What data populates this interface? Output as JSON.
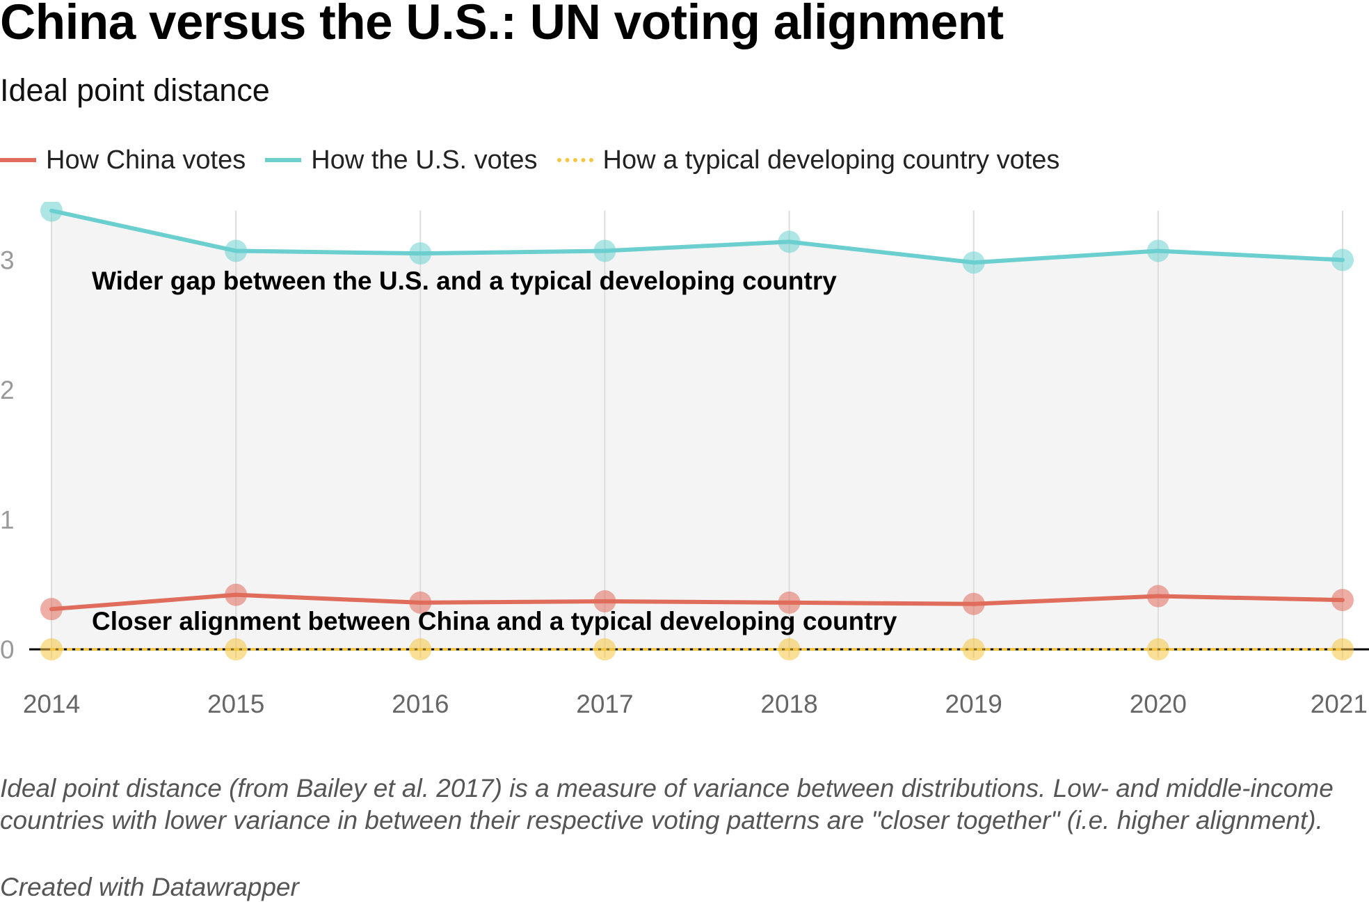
{
  "header": {
    "title": "China versus the U.S.: UN voting alignment",
    "subtitle": "Ideal point distance"
  },
  "legend": [
    {
      "label": "How China votes",
      "color": "#e06c5b",
      "style": "solid"
    },
    {
      "label": "How the U.S. votes",
      "color": "#6ccfcf",
      "style": "solid"
    },
    {
      "label": "How a typical developing country votes",
      "color": "#f5c542",
      "style": "dotted"
    }
  ],
  "chart_data": {
    "type": "line",
    "x": [
      "2014",
      "2015",
      "2016",
      "2017",
      "2018",
      "2019",
      "2020",
      "2021"
    ],
    "series": [
      {
        "name": "How the U.S. votes",
        "color": "#6ccfcf",
        "values": [
          3.38,
          3.07,
          3.05,
          3.07,
          3.14,
          2.98,
          3.07,
          3.0
        ]
      },
      {
        "name": "How China votes",
        "color": "#e06c5b",
        "values": [
          0.31,
          0.42,
          0.36,
          0.37,
          0.36,
          0.35,
          0.41,
          0.38
        ]
      },
      {
        "name": "How a typical developing country votes",
        "color": "#f5c542",
        "style": "dotted",
        "values": [
          0,
          0,
          0,
          0,
          0,
          0,
          0,
          0
        ]
      }
    ],
    "yticks": [
      "0",
      "1",
      "2",
      "3"
    ],
    "ylim": [
      0,
      3.38
    ],
    "grid": "vertical",
    "shaded_band": "between U.S. and developing country",
    "annotations": [
      "Wider gap between the U.S. and a typical developing country",
      "Closer alignment between China and a typical developing country"
    ]
  },
  "footer": {
    "note": "Ideal point distance (from Bailey et al. 2017) is a measure of variance between distributions. Low- and middle-income countries with lower variance in between their respective voting patterns are \"closer together\" (i.e. higher alignment).",
    "source": "Created with Datawrapper"
  }
}
